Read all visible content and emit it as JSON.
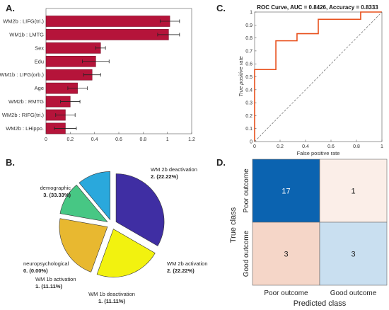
{
  "panels": {
    "a": {
      "letter": "A."
    },
    "b": {
      "letter": "B."
    },
    "c": {
      "letter": "C."
    },
    "d": {
      "letter": "D."
    }
  },
  "chart_data": [
    {
      "type": "bar",
      "orientation": "horizontal",
      "categories": [
        "WM2b : LIFG(tri.)",
        "WM1b : LMTG",
        "Sex",
        "Edu",
        "WM1b : LIFG(orb.)",
        "Age",
        "WM2b : RMTG",
        "WM2b : RIFG(tri.)",
        "WM2b : LHippo."
      ],
      "values": [
        1.02,
        1.01,
        0.45,
        0.41,
        0.38,
        0.26,
        0.2,
        0.16,
        0.16
      ],
      "errors": [
        0.08,
        0.09,
        0.04,
        0.11,
        0.07,
        0.08,
        0.08,
        0.08,
        0.09
      ],
      "xlim": [
        0,
        1.2
      ],
      "xticks": [
        "0",
        "0.2",
        "0.4",
        "0.6",
        "0.8",
        "1",
        "1.2"
      ],
      "grid": false,
      "colors": {
        "bar": "#b5143a",
        "bar_edge": "#6e0a22",
        "error": "#222222"
      }
    },
    {
      "type": "pie",
      "slices": [
        {
          "label": "demographic",
          "value_text": "3. (33.33%)",
          "value": 3,
          "color": "#3f2ea3"
        },
        {
          "label": "WM 2b deactivation",
          "value_text": "2. (22.22%)",
          "value": 2,
          "color": "#f2f20f"
        },
        {
          "label": "WM 2b activation",
          "value_text": "2. (22.22%)",
          "value": 2,
          "color": "#e8b830"
        },
        {
          "label": "WM 1b deactivation",
          "value_text": "1. (11.11%)",
          "value": 1,
          "color": "#47c784"
        },
        {
          "label": "WM 1b activation",
          "value_text": "1. (11.11%)",
          "value": 1,
          "color": "#2aa8dc"
        },
        {
          "label": "neuropsychological",
          "value_text": "0. (0.00%)",
          "value": 0,
          "color": "#1f3f8f"
        }
      ]
    },
    {
      "type": "line",
      "title": "ROC Curve, AUC = 0.8426, Accuracy = 0.8333",
      "xlabel": "False positive rate",
      "ylabel": "True positive rate",
      "xlim": [
        0,
        1
      ],
      "ylim": [
        0,
        1
      ],
      "xticks": [
        "0",
        "0.2",
        "0.4",
        "0.6",
        "0.8",
        "1"
      ],
      "yticks": [
        "0",
        "0.1",
        "0.2",
        "0.3",
        "0.4",
        "0.5",
        "0.6",
        "0.7",
        "0.8",
        "0.9",
        "1"
      ],
      "series": [
        {
          "x": [
            0,
            0,
            0.167,
            0.167,
            0.333,
            0.333,
            0.5,
            0.5,
            0.833,
            0.833,
            1
          ],
          "y": [
            0,
            0.556,
            0.556,
            0.778,
            0.778,
            0.833,
            0.833,
            0.944,
            0.944,
            1,
            1
          ],
          "color": "#e8501c"
        },
        {
          "x": [
            0,
            1
          ],
          "y": [
            0,
            1
          ],
          "color": "#777777",
          "style": "dashed"
        }
      ]
    },
    {
      "type": "heatmap",
      "xlabel": "Predicted class",
      "ylabel": "True class",
      "x_categories": [
        "Poor outcome",
        "Good outcome"
      ],
      "y_categories": [
        "Poor outcome",
        "Good outcome"
      ],
      "values": [
        [
          17,
          1
        ],
        [
          3,
          3
        ]
      ],
      "colors": [
        [
          "#0b63b0",
          "#fbeee8"
        ],
        [
          "#f5d6c8",
          "#c9dff0"
        ]
      ],
      "text_colors": [
        [
          "#ffffff",
          "#222222"
        ],
        [
          "#222222",
          "#222222"
        ]
      ]
    }
  ]
}
